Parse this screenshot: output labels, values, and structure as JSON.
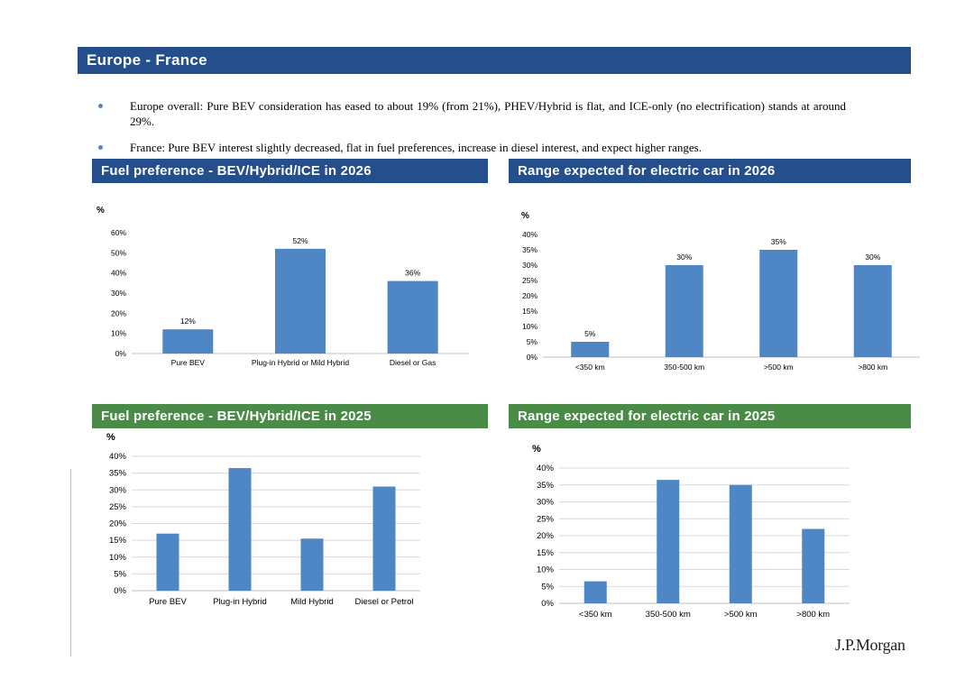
{
  "page": {
    "title": "Europe - France",
    "logo": "J.P.Morgan"
  },
  "bullets": [
    "Europe overall: Pure BEV consideration has eased to about 19% (from 21%), PHEV/Hybrid is flat, and ICE-only (no electrification) stands at around 29%.",
    "France: Pure BEV interest slightly decreased, flat in fuel preferences, increase in diesel interest, and expect higher ranges."
  ],
  "headers": {
    "fuel_2026": "Fuel preference - BEV/Hybrid/ICE in 2026",
    "range_2026": "Range expected for electric car in 2026",
    "fuel_2025": "Fuel preference - BEV/Hybrid/ICE in 2025",
    "range_2025": "Range expected for electric car in 2025"
  },
  "colors": {
    "header_blue": "#254e8c",
    "header_green": "#4a8c47",
    "bar": "#4f86c6"
  },
  "chart_data": [
    {
      "id": "fuel_2026",
      "type": "bar",
      "title": "Fuel preference - BEV/Hybrid/ICE in 2026",
      "ylabel": "%",
      "ylim": [
        0,
        60
      ],
      "yticks": [
        0,
        10,
        20,
        30,
        40,
        50,
        60
      ],
      "tick_labels": [
        "0%",
        "10%",
        "20%",
        "30%",
        "40%",
        "50%",
        "60%"
      ],
      "grid": false,
      "categories": [
        "Pure BEV",
        "Plug-in Hybrid or Mild Hybrid",
        "Diesel or Gas"
      ],
      "values": [
        12,
        52,
        36
      ],
      "data_labels": [
        "12%",
        "52%",
        "36%"
      ]
    },
    {
      "id": "range_2026",
      "type": "bar",
      "title": "Range expected for electric car in 2026",
      "ylabel": "%",
      "ylim": [
        0,
        40
      ],
      "yticks": [
        0,
        5,
        10,
        15,
        20,
        25,
        30,
        35,
        40
      ],
      "tick_labels": [
        "0%",
        "5%",
        "10%",
        "15%",
        "20%",
        "25%",
        "30%",
        "35%",
        "40%"
      ],
      "grid": false,
      "categories": [
        "<350 km",
        "350-500 km",
        ">500 km",
        ">800 km"
      ],
      "values": [
        5,
        30,
        35,
        30
      ],
      "data_labels": [
        "5%",
        "30%",
        "35%",
        "30%"
      ]
    },
    {
      "id": "fuel_2025",
      "type": "bar",
      "title": "Fuel preference - BEV/Hybrid/ICE in 2025",
      "ylabel": "%",
      "ylim": [
        0,
        40
      ],
      "yticks": [
        0,
        5,
        10,
        15,
        20,
        25,
        30,
        35,
        40
      ],
      "tick_labels": [
        "0%",
        "5%",
        "10%",
        "15%",
        "20%",
        "25%",
        "30%",
        "35%",
        "40%"
      ],
      "grid": true,
      "categories": [
        "Pure BEV",
        "Plug-in Hybrid",
        "Mild Hybrid",
        "Diesel or Petrol"
      ],
      "values": [
        17,
        36.5,
        15.5,
        31
      ],
      "data_labels": []
    },
    {
      "id": "range_2025",
      "type": "bar",
      "title": "Range expected for electric car in 2025",
      "ylabel": "%",
      "ylim": [
        0,
        40
      ],
      "yticks": [
        0,
        5,
        10,
        15,
        20,
        25,
        30,
        35,
        40
      ],
      "tick_labels": [
        "0%",
        "5%",
        "10%",
        "15%",
        "20%",
        "25%",
        "30%",
        "35%",
        "40%"
      ],
      "grid": true,
      "categories": [
        "<350 km",
        "350-500 km",
        ">500 km",
        ">800 km"
      ],
      "values": [
        6.5,
        36.5,
        35,
        22
      ],
      "data_labels": []
    }
  ]
}
